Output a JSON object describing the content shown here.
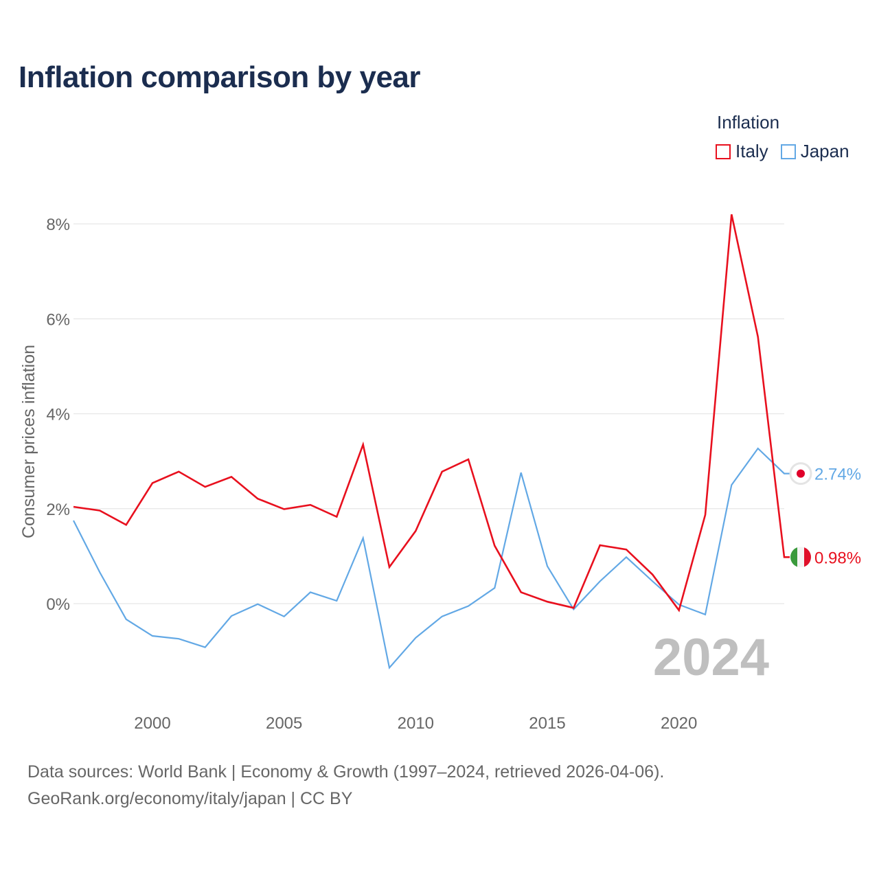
{
  "title": "Inflation comparison by year",
  "legend": {
    "title": "Inflation",
    "items": [
      {
        "label": "Italy",
        "color": "#e8101e"
      },
      {
        "label": "Japan",
        "color": "#62a8e5"
      }
    ]
  },
  "footer": {
    "line1": "Data sources: World Bank | Economy & Growth (1997–2024, retrieved 2026-04-06).",
    "line2": "GeoRank.org/economy/italy/japan | CC BY"
  },
  "chart_data": {
    "type": "line",
    "title": "Inflation comparison by year",
    "xlabel": "",
    "ylabel": "Consumer prices inflation",
    "xlim": [
      1997,
      2024
    ],
    "ylim": [
      -1.9,
      8.3
    ],
    "x_ticks": [
      2000,
      2005,
      2010,
      2015,
      2020
    ],
    "x_tick_labels": [
      "2000",
      "2005",
      "2010",
      "2015",
      "2020"
    ],
    "y_ticks": [
      0,
      2,
      4,
      6,
      8
    ],
    "y_tick_labels": [
      "0%",
      "2%",
      "4%",
      "6%",
      "8%"
    ],
    "grid": true,
    "year_watermark": "2024",
    "x": [
      1997,
      1998,
      1999,
      2000,
      2001,
      2002,
      2003,
      2004,
      2005,
      2006,
      2007,
      2008,
      2009,
      2010,
      2011,
      2012,
      2013,
      2014,
      2015,
      2016,
      2017,
      2018,
      2019,
      2020,
      2021,
      2022,
      2023,
      2024
    ],
    "series": [
      {
        "name": "Italy",
        "color": "#e8101e",
        "end_label": "0.98%",
        "flag": "italy",
        "values": [
          2.04,
          1.96,
          1.66,
          2.54,
          2.78,
          2.46,
          2.67,
          2.21,
          1.99,
          2.08,
          1.83,
          3.35,
          0.77,
          1.53,
          2.78,
          3.04,
          1.22,
          0.24,
          0.04,
          -0.09,
          1.23,
          1.14,
          0.61,
          -0.14,
          1.87,
          8.2,
          5.62,
          0.98
        ]
      },
      {
        "name": "Japan",
        "color": "#62a8e5",
        "end_label": "2.74%",
        "flag": "japan",
        "values": [
          1.75,
          0.66,
          -0.33,
          -0.68,
          -0.74,
          -0.92,
          -0.26,
          -0.01,
          -0.27,
          0.24,
          0.06,
          1.38,
          -1.35,
          -0.72,
          -0.27,
          -0.05,
          0.33,
          2.76,
          0.79,
          -0.12,
          0.47,
          0.98,
          0.47,
          -0.02,
          -0.23,
          2.5,
          3.27,
          2.74
        ]
      }
    ]
  }
}
